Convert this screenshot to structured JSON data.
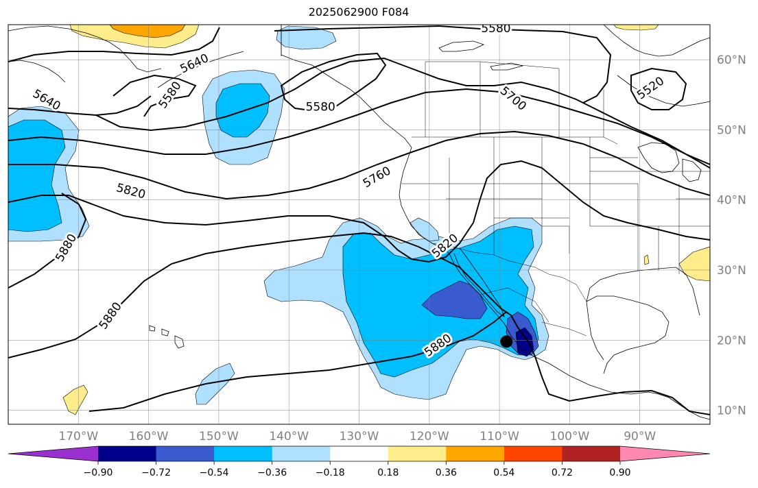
{
  "title": "2025062900 F084",
  "map": {
    "projection": "plate-carree",
    "lon_range": [
      -180,
      -80
    ],
    "lat_range": [
      8,
      65
    ],
    "grid_lines": true,
    "lat_ticks": [
      {
        "value": 10,
        "label": "10°N"
      },
      {
        "value": 20,
        "label": "20°N"
      },
      {
        "value": 30,
        "label": "30°N"
      },
      {
        "value": 40,
        "label": "40°N"
      },
      {
        "value": 50,
        "label": "50°N"
      },
      {
        "value": 60,
        "label": "60°N"
      }
    ],
    "lon_ticks": [
      {
        "value": -170,
        "label": "170°W"
      },
      {
        "value": -160,
        "label": "160°W"
      },
      {
        "value": -150,
        "label": "150°W"
      },
      {
        "value": -140,
        "label": "140°W"
      },
      {
        "value": -130,
        "label": "130°W"
      },
      {
        "value": -120,
        "label": "120°W"
      },
      {
        "value": -110,
        "label": "110°W"
      },
      {
        "value": -100,
        "label": "100°W"
      },
      {
        "value": -90,
        "label": "90°W"
      }
    ],
    "contour_labels": [
      {
        "text": "5580",
        "lon": -110.5,
        "lat": 64.5,
        "angle": 0
      },
      {
        "text": "5640",
        "lon": -153.5,
        "lat": 59.5,
        "angle": -25
      },
      {
        "text": "5640",
        "lon": -174.5,
        "lat": 54.3,
        "angle": 30
      },
      {
        "text": "5580",
        "lon": -157,
        "lat": 55,
        "angle": -55
      },
      {
        "text": "5580",
        "lon": -135.5,
        "lat": 53.3,
        "angle": 0
      },
      {
        "text": "5700",
        "lon": -108,
        "lat": 54.5,
        "angle": 40
      },
      {
        "text": "5520",
        "lon": -88.5,
        "lat": 56,
        "angle": -35
      },
      {
        "text": "5760",
        "lon": -127.5,
        "lat": 43.3,
        "angle": -30
      },
      {
        "text": "5820",
        "lon": -162.5,
        "lat": 41.3,
        "angle": 15
      },
      {
        "text": "5820",
        "lon": -117.8,
        "lat": 33.5,
        "angle": -40
      },
      {
        "text": "5880",
        "lon": -171.8,
        "lat": 33.2,
        "angle": -60
      },
      {
        "text": "5880",
        "lon": -165.5,
        "lat": 23.5,
        "angle": -55
      },
      {
        "text": "5880",
        "lon": -118.8,
        "lat": 19.3,
        "angle": -35
      }
    ],
    "marker": {
      "lon": -109,
      "lat": 19.8,
      "color": "#000000"
    }
  },
  "colorbar": {
    "extend": "both",
    "levels": [
      -0.9,
      -0.72,
      -0.54,
      -0.36,
      -0.18,
      0.18,
      0.36,
      0.54,
      0.72,
      0.9
    ],
    "tick_labels": [
      "−0.90",
      "−0.72",
      "−0.54",
      "−0.36",
      "−0.18",
      "0.18",
      "0.36",
      "0.54",
      "0.72",
      "0.90"
    ],
    "colors": [
      "#9b30d0",
      "#00008b",
      "#3a5bd0",
      "#00bfff",
      "#b0e0ff",
      "#ffffff",
      "#ffec8b",
      "#ffa500",
      "#ff4500",
      "#b22222",
      "#ff88b0"
    ]
  }
}
